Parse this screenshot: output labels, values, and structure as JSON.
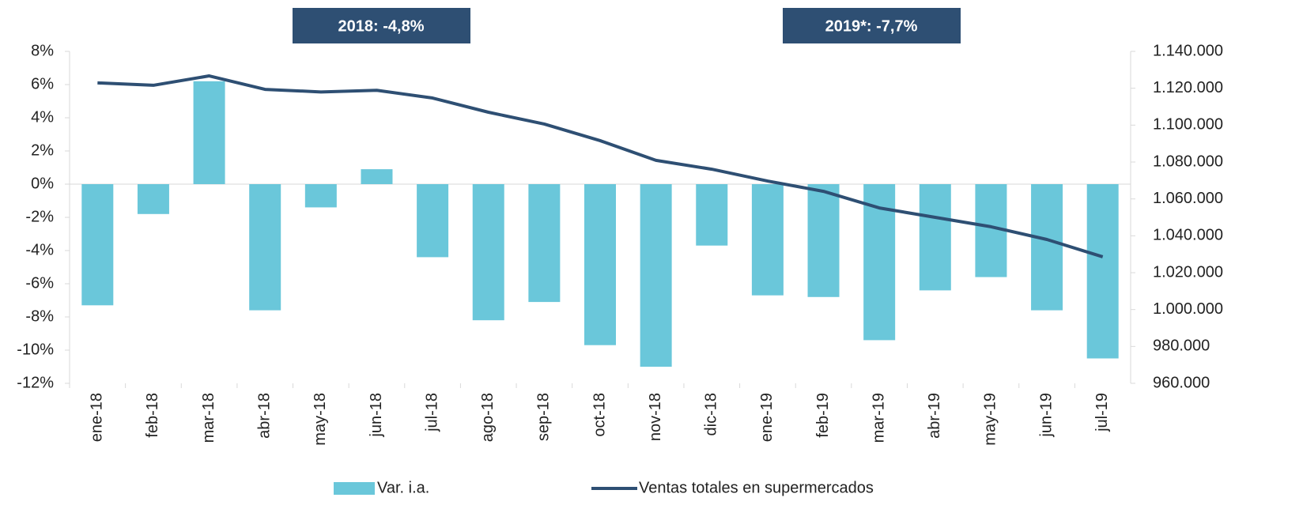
{
  "chart_data": {
    "type": "bar_line",
    "annotations": [
      "2018:  -4,8%",
      "2019*:  -7,7%"
    ],
    "categories": [
      "ene-18",
      "feb-18",
      "mar-18",
      "abr-18",
      "may-18",
      "jun-18",
      "jul-18",
      "ago-18",
      "sep-18",
      "oct-18",
      "nov-18",
      "dic-18",
      "ene-19",
      "feb-19",
      "mar-19",
      "abr-19",
      "may-19",
      "jun-19",
      "jul-19"
    ],
    "series": [
      {
        "name": "Var. i.a.",
        "type": "bar",
        "color": "#6ac7da",
        "axis": "y",
        "values": [
          -7.3,
          -1.8,
          6.2,
          -7.6,
          -1.4,
          0.9,
          -4.4,
          -8.2,
          -7.1,
          -9.7,
          -11.0,
          -3.7,
          -6.7,
          -6.8,
          -9.4,
          -6.4,
          -5.6,
          -7.6,
          -10.5
        ]
      },
      {
        "name": "Ventas totales en supermercados",
        "type": "line",
        "color": "#2e4f73",
        "axis": "y2",
        "values": [
          1122900,
          1121600,
          1126700,
          1119400,
          1118000,
          1118900,
          1114700,
          1107000,
          1100600,
          1091600,
          1080900,
          1076100,
          1069700,
          1064100,
          1055100,
          1050000,
          1044900,
          1038000,
          1028600
        ]
      }
    ],
    "ylim": [
      -12,
      8
    ],
    "yticks": [
      {
        "value": -12,
        "label": "-12%"
      },
      {
        "value": -10,
        "label": "-10%"
      },
      {
        "value": -8,
        "label": "-8%"
      },
      {
        "value": -6,
        "label": "-6%"
      },
      {
        "value": -4,
        "label": "-4%"
      },
      {
        "value": -2,
        "label": "-2%"
      },
      {
        "value": 0,
        "label": "0%"
      },
      {
        "value": 2,
        "label": "2%"
      },
      {
        "value": 4,
        "label": "4%"
      },
      {
        "value": 6,
        "label": "6%"
      },
      {
        "value": 8,
        "label": "8%"
      }
    ],
    "y2lim": [
      960000,
      1140000
    ],
    "y2ticks": [
      {
        "value": 960000,
        "label": "960.000"
      },
      {
        "value": 980000,
        "label": "980.000"
      },
      {
        "value": 1000000,
        "label": "1.000.000"
      },
      {
        "value": 1020000,
        "label": "1.020.000"
      },
      {
        "value": 1040000,
        "label": "1.040.000"
      },
      {
        "value": 1060000,
        "label": "1.060.000"
      },
      {
        "value": 1080000,
        "label": "1.080.000"
      },
      {
        "value": 1100000,
        "label": "1.100.000"
      },
      {
        "value": 1120000,
        "label": "1.120.000"
      },
      {
        "value": 1140000,
        "label": "1.140.000"
      }
    ],
    "legend": "bottom"
  }
}
